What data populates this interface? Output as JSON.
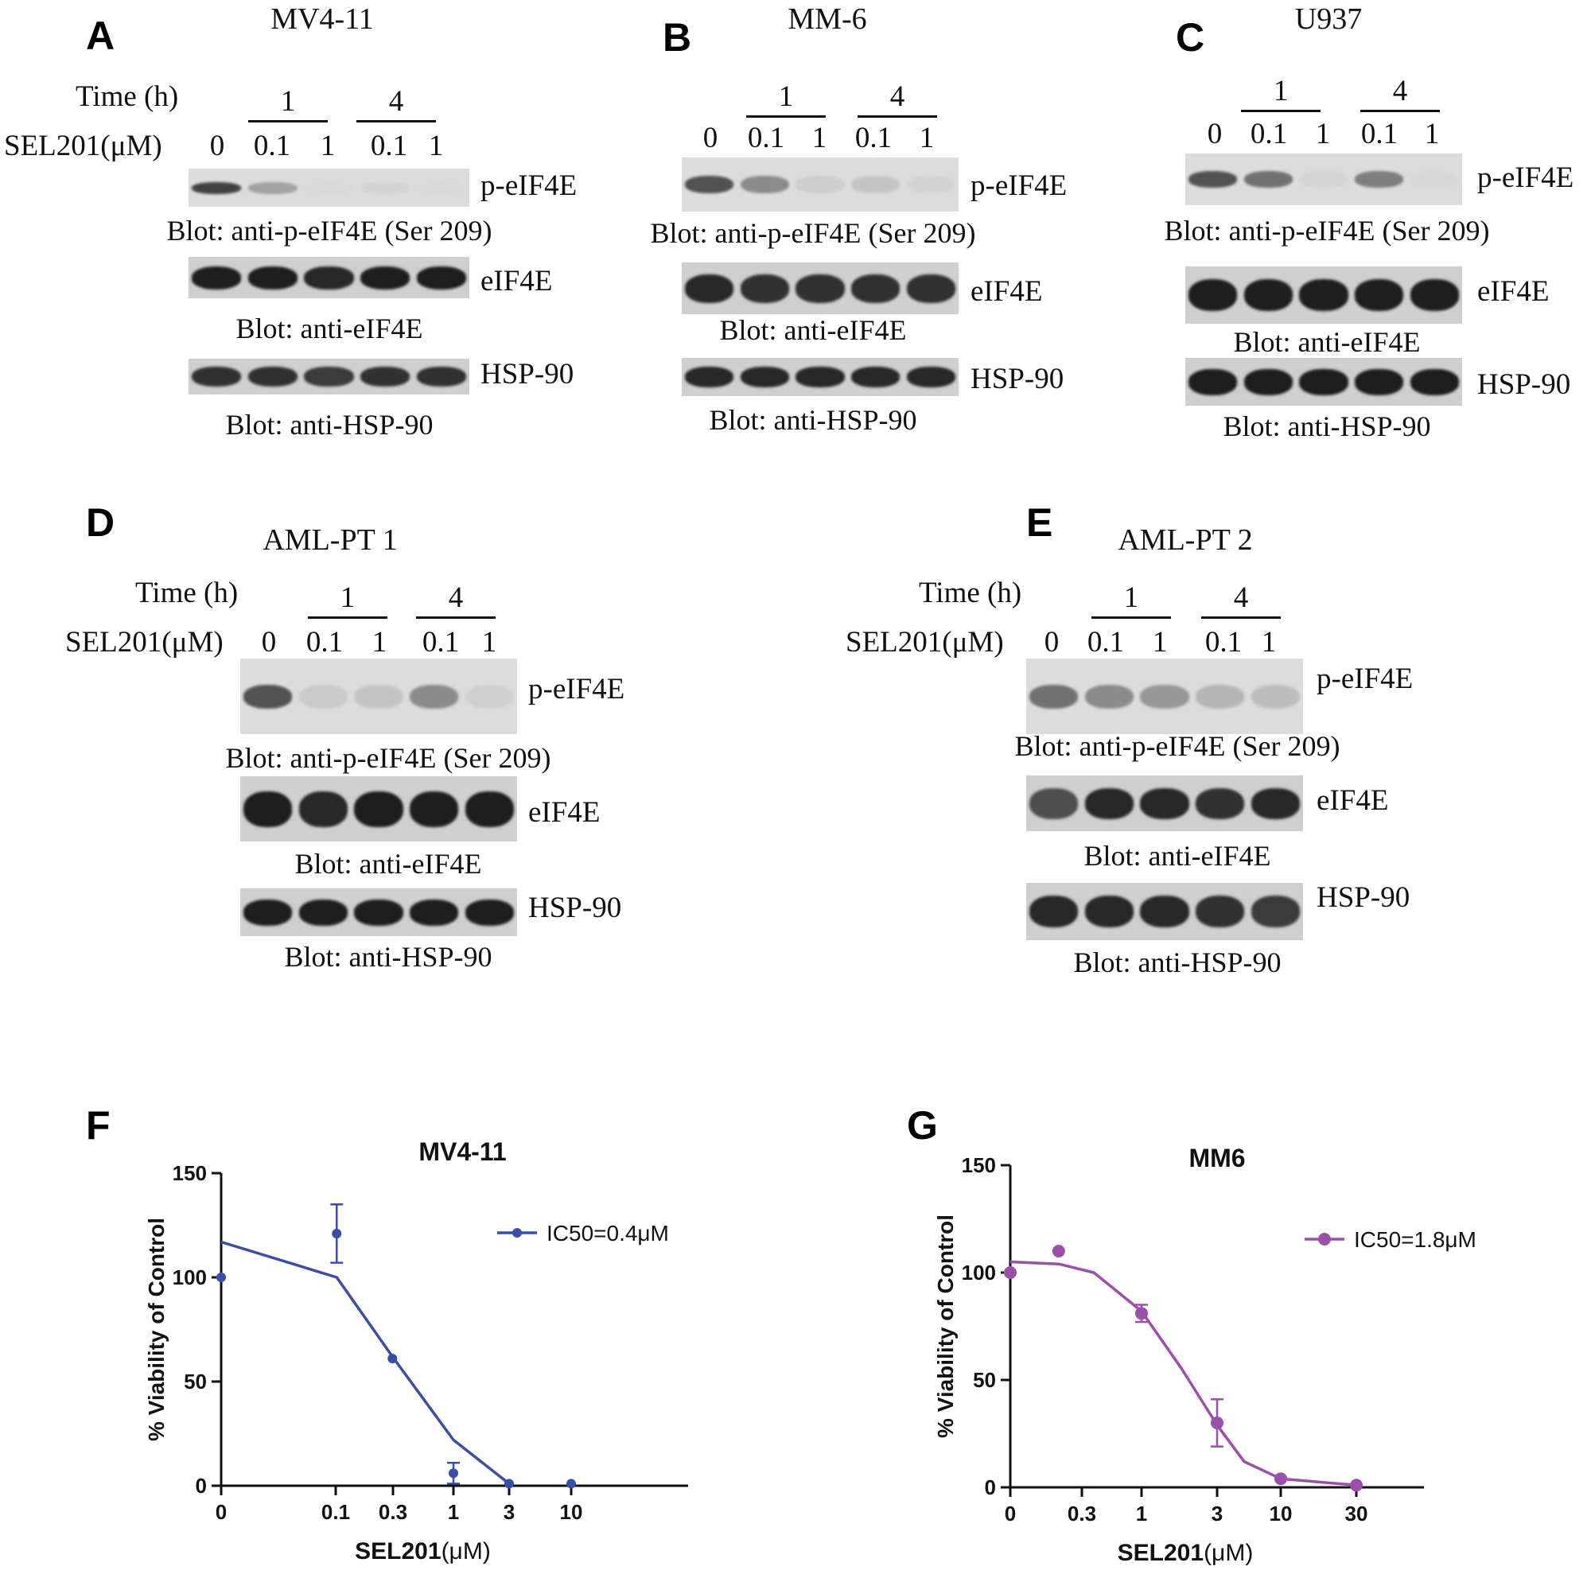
{
  "panels": [
    {
      "letter": "A",
      "title": "MV4-11",
      "time_label": "Time (h)",
      "sel_label": "SEL201(μM)",
      "times": [
        "1",
        "4"
      ],
      "doses": [
        "0",
        "0.1",
        "1",
        "0.1",
        "1"
      ],
      "blots": [
        {
          "side": "p-eIF4E",
          "caption": "Blot: anti-p-eIF4E (Ser 209)",
          "intensity": [
            0.9,
            0.55,
            0.06,
            0.22,
            0.06
          ]
        },
        {
          "side": "eIF4E",
          "caption": "Blot: anti-eIF4E",
          "intensity": [
            1,
            1,
            0.95,
            1,
            1
          ]
        },
        {
          "side": "HSP-90",
          "caption": "Blot: anti-HSP-90",
          "intensity": [
            0.9,
            0.9,
            0.85,
            0.9,
            0.9
          ]
        }
      ]
    },
    {
      "letter": "B",
      "title": "MM-6",
      "time_label": "",
      "sel_label": "",
      "times": [
        "1",
        "4"
      ],
      "doses": [
        "0",
        "0.1",
        "1",
        "0.1",
        "1"
      ],
      "blots": [
        {
          "side": "p-eIF4E",
          "caption": "Blot: anti-p-eIF4E (Ser 209)",
          "intensity": [
            0.85,
            0.65,
            0.28,
            0.35,
            0.22
          ]
        },
        {
          "side": "eIF4E",
          "caption": "Blot: anti-eIF4E",
          "intensity": [
            0.95,
            0.9,
            0.9,
            0.9,
            0.9
          ]
        },
        {
          "side": "HSP-90",
          "caption": "Blot: anti-HSP-90",
          "intensity": [
            0.95,
            0.95,
            0.95,
            0.95,
            0.95
          ]
        }
      ]
    },
    {
      "letter": "C",
      "title": "U937",
      "time_label": "",
      "sel_label": "",
      "times": [
        "1",
        "4"
      ],
      "doses": [
        "0",
        "0.1",
        "1",
        "0.1",
        "1"
      ],
      "blots": [
        {
          "side": "p-eIF4E",
          "caption": "Blot: anti-p-eIF4E (Ser 209)",
          "intensity": [
            0.85,
            0.75,
            0.2,
            0.7,
            0.15
          ]
        },
        {
          "side": "eIF4E",
          "caption": "Blot: anti-eIF4E",
          "intensity": [
            1,
            1,
            1,
            1,
            1
          ]
        },
        {
          "side": "HSP-90",
          "caption": "Blot: anti-HSP-90",
          "intensity": [
            1,
            1,
            1,
            1,
            1
          ]
        }
      ]
    },
    {
      "letter": "D",
      "title": "AML-PT 1",
      "time_label": "Time (h)",
      "sel_label": "SEL201(μM)",
      "times": [
        "1",
        "4"
      ],
      "doses": [
        "0",
        "0.1",
        "1",
        "0.1",
        "1"
      ],
      "blots": [
        {
          "side": "p-eIF4E",
          "caption": "Blot: anti-p-eIF4E (Ser 209)",
          "intensity": [
            0.85,
            0.3,
            0.35,
            0.65,
            0.25
          ]
        },
        {
          "side": "eIF4E",
          "caption": "Blot: anti-eIF4E",
          "intensity": [
            1,
            0.95,
            1,
            1,
            1
          ]
        },
        {
          "side": "HSP-90",
          "caption": "Blot: anti-HSP-90",
          "intensity": [
            1,
            1,
            1,
            1,
            1
          ]
        }
      ]
    },
    {
      "letter": "E",
      "title": "AML-PT 2",
      "time_label": "Time (h)",
      "sel_label": "SEL201(μM)",
      "times": [
        "1",
        "4"
      ],
      "doses": [
        "0",
        "0.1",
        "1",
        "0.1",
        "1"
      ],
      "blots": [
        {
          "side": "p-eIF4E",
          "caption": "Blot: anti-p-eIF4E (Ser 209)",
          "intensity": [
            0.75,
            0.65,
            0.6,
            0.45,
            0.4
          ]
        },
        {
          "side": "eIF4E",
          "caption": "Blot: anti-eIF4E",
          "intensity": [
            0.75,
            0.95,
            0.95,
            0.9,
            0.95
          ]
        },
        {
          "side": "HSP-90",
          "caption": "Blot: anti-HSP-90",
          "intensity": [
            0.95,
            0.95,
            0.95,
            0.9,
            0.85
          ]
        }
      ]
    }
  ],
  "chart_data": [
    {
      "letter": "F",
      "type": "scatter",
      "title": "MV4-11",
      "xlabel_bold": "SEL201",
      "xlabel_unit": "(μM)",
      "ylabel": "% Viability of Control",
      "x_scale": "log",
      "x_ticks": [
        "0",
        "0.1",
        "0.3",
        "1",
        "3",
        "10"
      ],
      "y_ticks": [
        "0",
        "50",
        "100",
        "150"
      ],
      "ylim": [
        0,
        150
      ],
      "color": "#3b4ea6",
      "legend": "IC50=0.4μM",
      "legend_position": "top-right",
      "points": [
        {
          "x": "0",
          "y": 100,
          "err": 0
        },
        {
          "x": "0.1",
          "y": 121,
          "err": 14
        },
        {
          "x": "0.3",
          "y": 61,
          "err": 0
        },
        {
          "x": "1",
          "y": 6,
          "err": 5
        },
        {
          "x": "3",
          "y": 1,
          "err": 0
        },
        {
          "x": "10",
          "y": 1,
          "err": 0
        }
      ],
      "fit_curve": [
        [
          0,
          117
        ],
        [
          0.1,
          100
        ],
        [
          0.3,
          62
        ],
        [
          1,
          22
        ],
        [
          3,
          1
        ]
      ]
    },
    {
      "letter": "G",
      "type": "scatter",
      "title": "MM6",
      "xlabel_bold": "SEL201",
      "xlabel_unit": "(μM)",
      "ylabel": "% Viability of Control",
      "x_scale": "log",
      "x_ticks": [
        "0",
        "0.3",
        "1",
        "3",
        "10",
        "30"
      ],
      "y_ticks": [
        "0",
        "50",
        "100",
        "150"
      ],
      "ylim": [
        0,
        150
      ],
      "color": "#9b4fa8",
      "legend": "IC50=1.8μM",
      "legend_position": "top-right",
      "points": [
        {
          "x": "0",
          "y": 100,
          "err": 0
        },
        {
          "x": "0.3",
          "y": 110,
          "err": 0
        },
        {
          "x": "1",
          "y": 81,
          "err": 4
        },
        {
          "x": "3",
          "y": 30,
          "err": 11
        },
        {
          "x": "10",
          "y": 4,
          "err": 0
        },
        {
          "x": "30",
          "y": 1,
          "err": 0
        }
      ],
      "fit_curve": [
        [
          0,
          105
        ],
        [
          0.3,
          104
        ],
        [
          0.5,
          100
        ],
        [
          1,
          82
        ],
        [
          1.8,
          55
        ],
        [
          3,
          29
        ],
        [
          5,
          12
        ],
        [
          10,
          4
        ],
        [
          30,
          1
        ]
      ]
    }
  ]
}
